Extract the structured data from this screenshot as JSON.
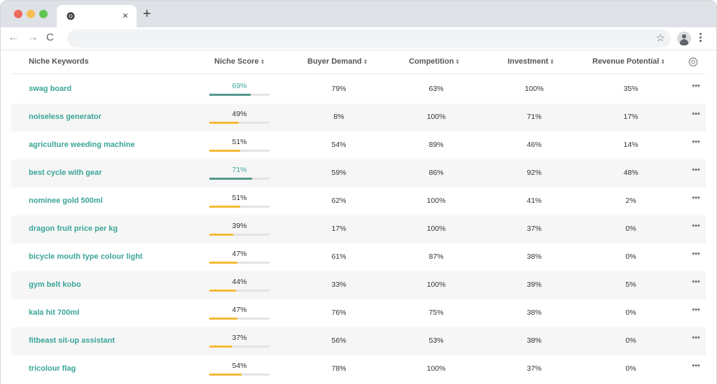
{
  "browser": {
    "new_tab_label": "+",
    "close_tab_label": "×",
    "back_label": "←",
    "forward_label": "→",
    "reload_label": "C",
    "star_label": "☆",
    "address_value": ""
  },
  "table": {
    "columns": {
      "keyword": "Niche Keywords",
      "score": "Niche Score",
      "buyer_demand": "Buyer Demand",
      "competition": "Competition",
      "investment": "Investment",
      "revenue": "Revenue Potential"
    },
    "sort_glyph": "⇕",
    "more_glyph": "•••",
    "rows": [
      {
        "keyword": "swag board",
        "score": "69%",
        "score_value": 0.69,
        "score_level": "high",
        "buyer_demand": "79%",
        "competition": "63%",
        "investment": "100%",
        "revenue": "35%"
      },
      {
        "keyword": "noiseless generator",
        "score": "49%",
        "score_value": 0.49,
        "score_level": "mid",
        "buyer_demand": "8%",
        "competition": "100%",
        "investment": "71%",
        "revenue": "17%"
      },
      {
        "keyword": "agriculture weeding machine",
        "score": "51%",
        "score_value": 0.51,
        "score_level": "mid",
        "buyer_demand": "54%",
        "competition": "89%",
        "investment": "46%",
        "revenue": "14%"
      },
      {
        "keyword": "best cycle with gear",
        "score": "71%",
        "score_value": 0.71,
        "score_level": "high",
        "buyer_demand": "59%",
        "competition": "86%",
        "investment": "92%",
        "revenue": "48%"
      },
      {
        "keyword": "nominee gold 500ml",
        "score": "51%",
        "score_value": 0.51,
        "score_level": "mid",
        "buyer_demand": "62%",
        "competition": "100%",
        "investment": "41%",
        "revenue": "2%"
      },
      {
        "keyword": "dragon fruit price per kg",
        "score": "39%",
        "score_value": 0.39,
        "score_level": "mid",
        "buyer_demand": "17%",
        "competition": "100%",
        "investment": "37%",
        "revenue": "0%"
      },
      {
        "keyword": "bicycle mouth type colour light",
        "score": "47%",
        "score_value": 0.47,
        "score_level": "mid",
        "buyer_demand": "61%",
        "competition": "87%",
        "investment": "38%",
        "revenue": "0%"
      },
      {
        "keyword": "gym belt kobo",
        "score": "44%",
        "score_value": 0.44,
        "score_level": "mid",
        "buyer_demand": "33%",
        "competition": "100%",
        "investment": "39%",
        "revenue": "5%"
      },
      {
        "keyword": "kala hit 700ml",
        "score": "47%",
        "score_value": 0.47,
        "score_level": "mid",
        "buyer_demand": "76%",
        "competition": "75%",
        "investment": "38%",
        "revenue": "0%"
      },
      {
        "keyword": "fitbeast sit-up assistant",
        "score": "37%",
        "score_value": 0.37,
        "score_level": "mid",
        "buyer_demand": "56%",
        "competition": "53%",
        "investment": "38%",
        "revenue": "0%"
      },
      {
        "keyword": "tricolour flag",
        "score": "54%",
        "score_value": 0.54,
        "score_level": "mid",
        "buyer_demand": "78%",
        "competition": "100%",
        "investment": "37%",
        "revenue": "0%"
      }
    ]
  },
  "colors": {
    "accent_teal": "#3aa597",
    "bar_high": "#54968d",
    "bar_mid": "#f5b935"
  },
  "icons": {
    "settings": "gear-icon",
    "chrome": "chrome-icon",
    "bookmark": "star-icon",
    "profile": "account-icon",
    "menu": "kebab-menu-icon"
  }
}
